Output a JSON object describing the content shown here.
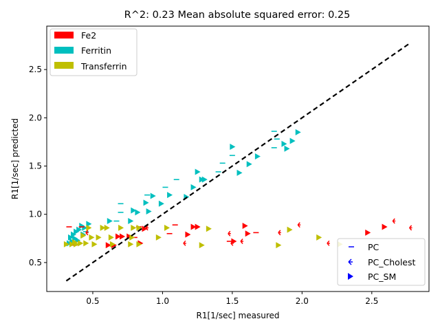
{
  "chart_data": {
    "type": "scatter",
    "title": "R^2: 0.23 Mean absolute squared error: 0.25",
    "xlabel": "R1[1/sec] measured",
    "ylabel": "R1[1/sec] predicted",
    "xlim": [
      0.17,
      2.91
    ],
    "ylim": [
      0.2,
      2.95
    ],
    "xticks": [
      "0.5",
      "1.0",
      "1.5",
      "2.0",
      "2.5"
    ],
    "yticks": [
      "0.5",
      "1.0",
      "1.5",
      "2.0",
      "2.5"
    ],
    "grid": false,
    "identity_line": {
      "from": [
        0.31,
        0.31
      ],
      "to": [
        2.77,
        2.77
      ],
      "color": "#000000",
      "style": "dashed"
    },
    "color_legend": {
      "placement": "top-left",
      "entries": [
        {
          "label": "Fe2",
          "color": "#ff0000"
        },
        {
          "label": "Ferritin",
          "color": "#00bfbf"
        },
        {
          "label": "Transferrin",
          "color": "#bfbf00"
        }
      ]
    },
    "marker_legend": {
      "placement": "bottom-right",
      "color": "#0000ff",
      "entries": [
        {
          "label": "PC",
          "marker": "hline"
        },
        {
          "label": "PC_Cholest",
          "marker": "tri-left"
        },
        {
          "label": "PC_SM",
          "marker": "triangle-right"
        }
      ]
    },
    "series": [
      {
        "group": "Ferritin",
        "color": "#00bfbf",
        "points": [
          [
            0.33,
            0.7,
            "t"
          ],
          [
            0.35,
            0.72,
            "t"
          ],
          [
            0.37,
            0.75,
            "t"
          ],
          [
            0.36,
            0.79,
            "t"
          ],
          [
            0.38,
            0.82,
            "t"
          ],
          [
            0.4,
            0.84,
            "t"
          ],
          [
            0.42,
            0.88,
            "t"
          ],
          [
            0.44,
            0.86,
            "t"
          ],
          [
            0.47,
            0.9,
            "t"
          ],
          [
            0.39,
            0.73,
            "t"
          ],
          [
            0.34,
            0.76,
            "t"
          ],
          [
            0.43,
            0.79,
            "t"
          ],
          [
            0.62,
            0.93,
            "t"
          ],
          [
            0.77,
            0.93,
            "t"
          ],
          [
            0.79,
            1.04,
            "t"
          ],
          [
            0.82,
            1.02,
            "t"
          ],
          [
            0.9,
            1.03,
            "t"
          ],
          [
            0.88,
            1.12,
            "t"
          ],
          [
            0.93,
            1.19,
            "t"
          ],
          [
            0.99,
            1.11,
            "t"
          ],
          [
            1.05,
            1.2,
            "t"
          ],
          [
            1.17,
            1.18,
            "t"
          ],
          [
            1.22,
            1.28,
            "t"
          ],
          [
            1.25,
            1.44,
            "t"
          ],
          [
            1.28,
            1.36,
            "t"
          ],
          [
            1.3,
            1.36,
            "t"
          ],
          [
            1.5,
            1.7,
            "t"
          ],
          [
            1.55,
            1.43,
            "t"
          ],
          [
            1.62,
            1.52,
            "t"
          ],
          [
            1.68,
            1.6,
            "t"
          ],
          [
            1.87,
            1.73,
            "t"
          ],
          [
            1.89,
            1.68,
            "t"
          ],
          [
            1.93,
            1.76,
            "t"
          ],
          [
            1.97,
            1.85,
            "t"
          ],
          [
            0.67,
            0.93,
            "h"
          ],
          [
            0.7,
            1.02,
            "h"
          ],
          [
            0.7,
            1.11,
            "h"
          ],
          [
            0.89,
            1.2,
            "h"
          ],
          [
            1.02,
            1.28,
            "h"
          ],
          [
            1.1,
            1.36,
            "h"
          ],
          [
            1.4,
            1.44,
            "h"
          ],
          [
            1.43,
            1.53,
            "h"
          ],
          [
            1.5,
            1.61,
            "h"
          ],
          [
            1.8,
            1.69,
            "h"
          ],
          [
            1.8,
            1.86,
            "h"
          ],
          [
            1.82,
            1.78,
            "h"
          ],
          [
            0.45,
            0.82,
            "h"
          ]
        ]
      },
      {
        "group": "Fe2",
        "color": "#ff0000",
        "points": [
          [
            0.61,
            0.68,
            "t"
          ],
          [
            0.65,
            0.68,
            "t"
          ],
          [
            0.68,
            0.77,
            "t"
          ],
          [
            0.71,
            0.77,
            "t"
          ],
          [
            0.76,
            0.77,
            "t"
          ],
          [
            0.84,
            0.7,
            "t"
          ],
          [
            0.87,
            0.85,
            "t"
          ],
          [
            1.18,
            0.79,
            "t"
          ],
          [
            1.22,
            0.87,
            "t"
          ],
          [
            1.25,
            0.87,
            "t"
          ],
          [
            1.51,
            0.72,
            "t"
          ],
          [
            1.59,
            0.88,
            "t"
          ],
          [
            1.61,
            0.8,
            "t"
          ],
          [
            2.47,
            0.81,
            "t"
          ],
          [
            2.59,
            0.87,
            "t"
          ],
          [
            0.33,
            0.87,
            "h"
          ],
          [
            0.37,
            0.68,
            "h"
          ],
          [
            0.42,
            0.87,
            "h"
          ],
          [
            0.83,
            0.87,
            "h"
          ],
          [
            1.05,
            0.8,
            "h"
          ],
          [
            1.09,
            0.89,
            "h"
          ],
          [
            1.48,
            0.72,
            "h"
          ],
          [
            1.67,
            0.81,
            "h"
          ],
          [
            0.8,
            0.76,
            "h"
          ],
          [
            0.45,
            0.81,
            "c"
          ],
          [
            0.88,
            0.86,
            "c"
          ],
          [
            1.15,
            0.7,
            "c"
          ],
          [
            1.47,
            0.8,
            "c"
          ],
          [
            1.49,
            0.7,
            "c"
          ],
          [
            1.56,
            0.72,
            "c"
          ],
          [
            1.83,
            0.81,
            "c"
          ],
          [
            1.97,
            0.89,
            "c"
          ],
          [
            2.18,
            0.7,
            "c"
          ],
          [
            2.65,
            0.93,
            "c"
          ],
          [
            2.77,
            0.86,
            "c"
          ]
        ]
      },
      {
        "group": "Transferrin",
        "color": "#bfbf00",
        "points": [
          [
            0.31,
            0.69,
            "t"
          ],
          [
            0.35,
            0.69,
            "t"
          ],
          [
            0.38,
            0.69,
            "t"
          ],
          [
            0.41,
            0.7,
            "t"
          ],
          [
            0.45,
            0.7,
            "t"
          ],
          [
            0.49,
            0.76,
            "t"
          ],
          [
            0.51,
            0.69,
            "t"
          ],
          [
            0.57,
            0.86,
            "t"
          ],
          [
            0.63,
            0.76,
            "t"
          ],
          [
            0.64,
            0.69,
            "t"
          ],
          [
            0.7,
            0.86,
            "t"
          ],
          [
            0.77,
            0.69,
            "t"
          ],
          [
            0.78,
            0.76,
            "t"
          ],
          [
            0.83,
            0.86,
            "t"
          ],
          [
            0.83,
            0.69,
            "t"
          ],
          [
            0.97,
            0.76,
            "t"
          ],
          [
            1.03,
            0.86,
            "t"
          ],
          [
            1.28,
            0.68,
            "t"
          ],
          [
            1.33,
            0.85,
            "t"
          ],
          [
            1.83,
            0.68,
            "t"
          ],
          [
            1.91,
            0.84,
            "t"
          ],
          [
            2.12,
            0.76,
            "t"
          ],
          [
            2.27,
            0.69,
            "t"
          ],
          [
            0.47,
            0.86,
            "t"
          ],
          [
            0.54,
            0.76,
            "t"
          ],
          [
            0.37,
            0.71,
            "t"
          ],
          [
            0.43,
            0.78,
            "t"
          ],
          [
            0.6,
            0.86,
            "t"
          ],
          [
            0.79,
            0.86,
            "t"
          ]
        ]
      }
    ]
  }
}
